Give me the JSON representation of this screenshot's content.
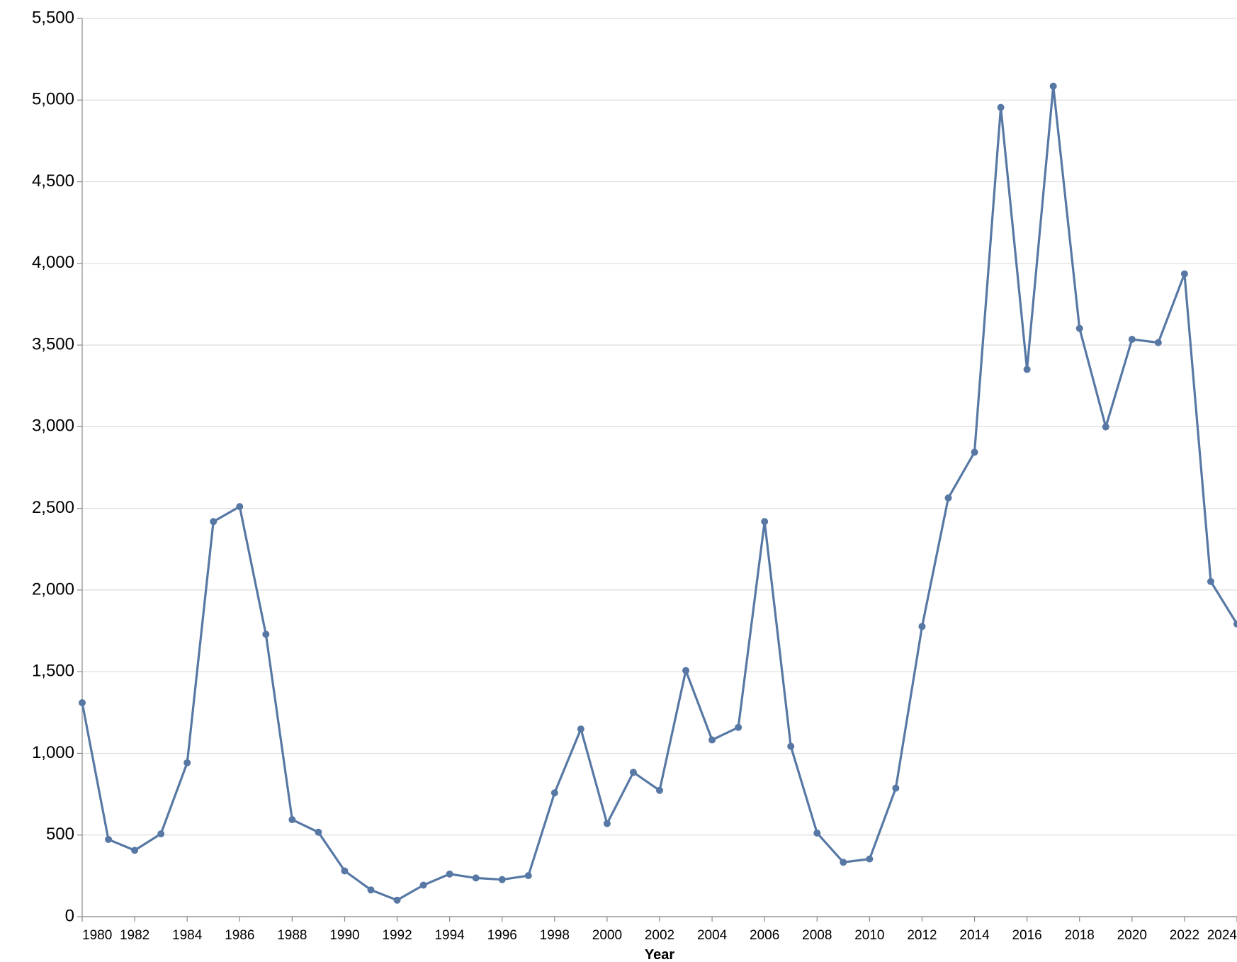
{
  "chart_data": {
    "type": "line",
    "x_label": "Year",
    "x": [
      1980,
      1981,
      1982,
      1983,
      1984,
      1985,
      1986,
      1987,
      1988,
      1989,
      1990,
      1991,
      1992,
      1993,
      1994,
      1995,
      1996,
      1997,
      1998,
      1999,
      2000,
      2001,
      2002,
      2003,
      2004,
      2005,
      2006,
      2007,
      2008,
      2009,
      2010,
      2011,
      2012,
      2013,
      2014,
      2015,
      2016,
      2017,
      2018,
      2019,
      2020,
      2021,
      2022,
      2023,
      2024
    ],
    "series": [
      {
        "color": "#5778a4",
        "values": [
          1310,
          473,
          406,
          507,
          942,
          2419,
          2511,
          1729,
          594,
          517,
          280,
          164,
          101,
          193,
          261,
          237,
          227,
          251,
          758,
          1149,
          570,
          884,
          773,
          1507,
          1082,
          1159,
          2419,
          1043,
          512,
          333,
          353,
          787,
          1777,
          2564,
          2844,
          4955,
          3351,
          5085,
          3602,
          2999,
          3535,
          3515,
          3936,
          2052,
          1792
        ]
      }
    ],
    "xlim": [
      1980,
      2024
    ],
    "xticks": [
      1980,
      1982,
      1984,
      1986,
      1988,
      1990,
      1992,
      1994,
      1996,
      1998,
      2000,
      2002,
      2004,
      2006,
      2008,
      2010,
      2012,
      2014,
      2016,
      2018,
      2020,
      2022,
      2024
    ],
    "ylim": [
      0,
      5500
    ],
    "yticks": [
      0,
      500,
      {
        "value": 1000,
        "label": "1,000"
      },
      {
        "value": 1500,
        "label": "1,500"
      },
      {
        "value": 2000,
        "label": "2,000"
      },
      {
        "value": 2500,
        "label": "2,500"
      },
      {
        "value": 3000,
        "label": "3,000"
      },
      {
        "value": 3500,
        "label": "3,500"
      },
      {
        "value": 4000,
        "label": "4,000"
      },
      {
        "value": 4500,
        "label": "4,500"
      },
      {
        "value": 5000,
        "label": "5,000"
      },
      {
        "value": 5500,
        "label": "5,500"
      }
    ],
    "grid": true
  }
}
